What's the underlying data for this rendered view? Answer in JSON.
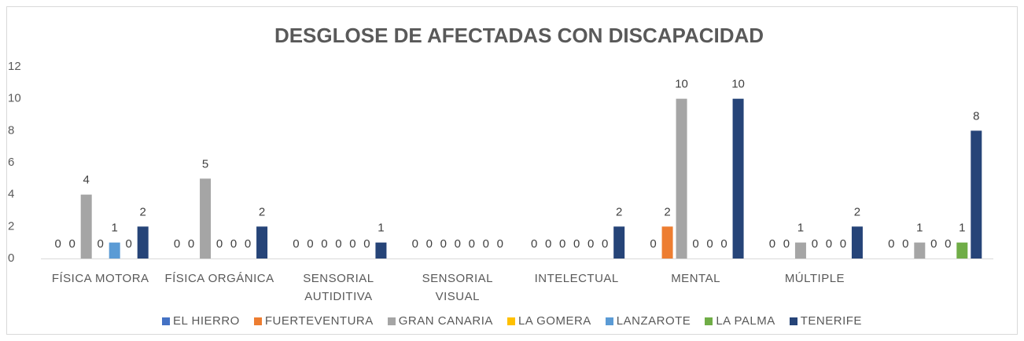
{
  "chart_data": {
    "type": "bar",
    "title": "DESGLOSE DE AFECTADAS CON DISCAPACIDAD",
    "categories": [
      "FÍSICA MOTORA",
      "FÍSICA ORGÁNICA",
      "SENSORIAL AUTIDITIVA",
      "SENSORIAL VISUAL",
      "INTELECTUAL",
      "MENTAL",
      "MÚLTIPLE",
      null
    ],
    "series": [
      {
        "name": "EL HIERRO",
        "color": "#4472c4",
        "values": [
          0,
          0,
          0,
          0,
          0,
          0,
          0,
          0
        ]
      },
      {
        "name": "FUERTEVENTURA",
        "color": "#ed7d31",
        "values": [
          0,
          0,
          0,
          0,
          0,
          2,
          0,
          0
        ]
      },
      {
        "name": "GRAN CANARIA",
        "color": "#a5a5a5",
        "values": [
          4,
          5,
          0,
          0,
          0,
          10,
          1,
          1
        ]
      },
      {
        "name": "LA GOMERA",
        "color": "#ffc000",
        "values": [
          0,
          0,
          0,
          0,
          0,
          0,
          0,
          0
        ]
      },
      {
        "name": "LANZAROTE",
        "color": "#5b9bd5",
        "values": [
          1,
          0,
          0,
          0,
          0,
          0,
          0,
          0
        ]
      },
      {
        "name": "LA PALMA",
        "color": "#70ad47",
        "values": [
          0,
          0,
          0,
          0,
          0,
          0,
          0,
          1
        ]
      },
      {
        "name": "TENERIFE",
        "color": "#264478",
        "values": [
          2,
          2,
          1,
          0,
          2,
          10,
          2,
          8
        ]
      }
    ],
    "ylim": [
      0,
      12
    ],
    "yticks": [
      0,
      2,
      4,
      6,
      8,
      10,
      12
    ],
    "grid": false,
    "legend": "bottom"
  }
}
